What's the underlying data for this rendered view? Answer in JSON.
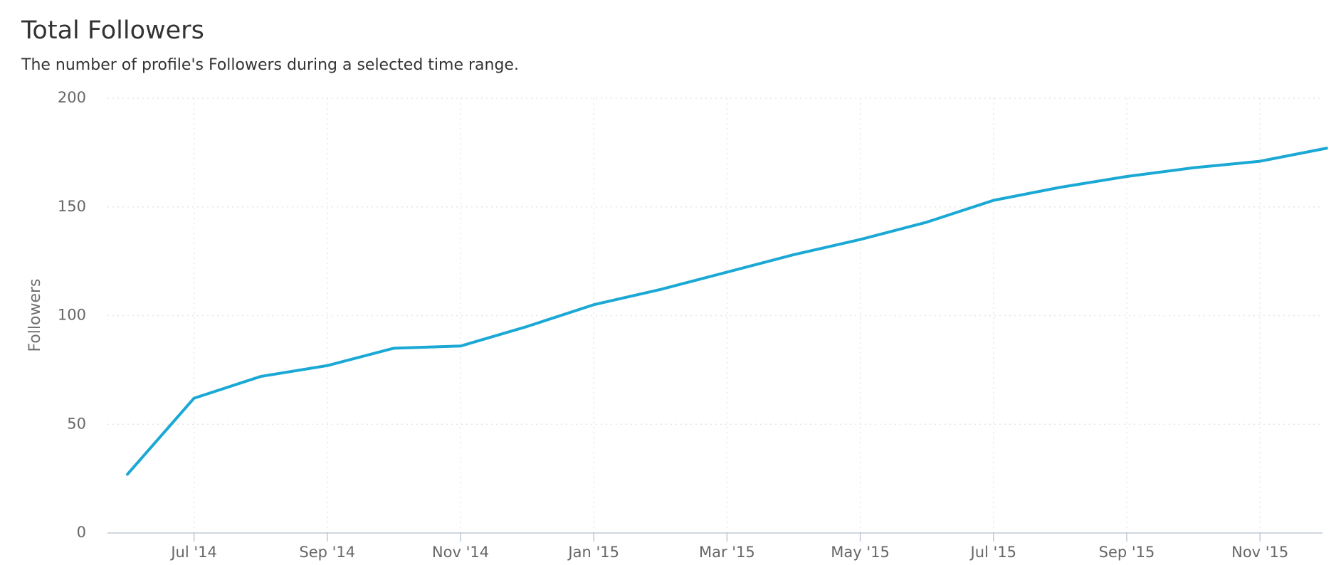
{
  "chart_data": {
    "type": "line",
    "title": "Total Followers",
    "subtitle": "The number of profile's Followers during a selected time range.",
    "y_label": "Followers",
    "x": [
      "2014-06",
      "2014-07",
      "2014-08",
      "2014-09",
      "2014-10",
      "2014-11",
      "2014-12",
      "2015-01",
      "2015-02",
      "2015-03",
      "2015-04",
      "2015-05",
      "2015-06",
      "2015-07",
      "2015-08",
      "2015-09",
      "2015-10",
      "2015-11",
      "2015-12"
    ],
    "series": [
      {
        "name": "Followers",
        "color": "#1aa8d4",
        "values": [
          27,
          62,
          72,
          77,
          85,
          86,
          95,
          105,
          112,
          120,
          128,
          135,
          143,
          153,
          159,
          164,
          168,
          171,
          177
        ]
      }
    ],
    "ylim": [
      0,
      200
    ],
    "yticks": [
      0,
      50,
      100,
      150,
      200
    ],
    "xticks": [
      {
        "value": "2014-07",
        "label": "Jul '14"
      },
      {
        "value": "2014-09",
        "label": "Sep '14"
      },
      {
        "value": "2014-11",
        "label": "Nov '14"
      },
      {
        "value": "2015-01",
        "label": "Jan '15"
      },
      {
        "value": "2015-03",
        "label": "Mar '15"
      },
      {
        "value": "2015-05",
        "label": "May '15"
      },
      {
        "value": "2015-07",
        "label": "Jul '15"
      },
      {
        "value": "2015-09",
        "label": "Sep '15"
      },
      {
        "value": "2015-11",
        "label": "Nov '15"
      }
    ],
    "grid": true
  }
}
